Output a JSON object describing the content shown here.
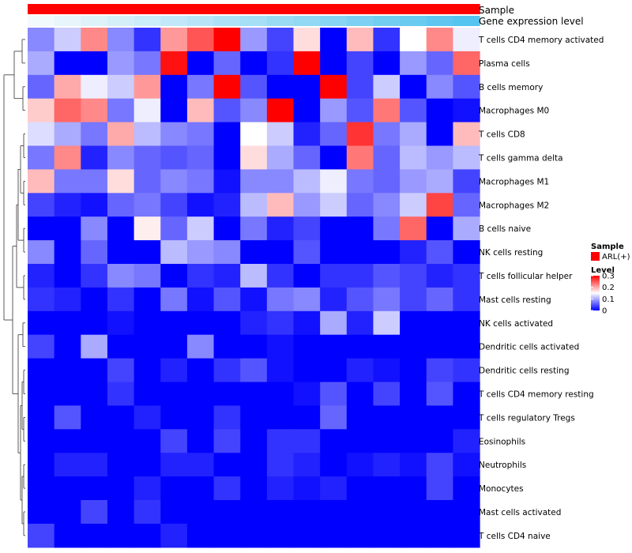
{
  "chart_data": {
    "type": "heatmap",
    "value_range": [
      0,
      0.3
    ],
    "color_stops": [
      "#0000ff",
      "#ffffff",
      "#ff0000"
    ],
    "rows": [
      {
        "label": "T cells CD4 memory activated",
        "values": [
          0.08,
          0.12,
          0.22,
          0.08,
          0.03,
          0.21,
          0.25,
          0.3,
          0.09,
          0.04,
          0.17,
          0.0,
          0.19,
          0.03,
          0.15,
          0.22,
          0.14
        ]
      },
      {
        "label": "Plasma cells",
        "values": [
          0.1,
          0.0,
          0.0,
          0.09,
          0.07,
          0.29,
          0.0,
          0.06,
          0.0,
          0.03,
          0.3,
          0.0,
          0.04,
          0.0,
          0.09,
          0.06,
          0.24
        ]
      },
      {
        "label": "B cells memory",
        "values": [
          0.06,
          0.2,
          0.14,
          0.12,
          0.21,
          0.0,
          0.07,
          0.3,
          0.05,
          0.0,
          0.0,
          0.3,
          0.04,
          0.12,
          0.0,
          0.08,
          0.05
        ]
      },
      {
        "label": "Macrophages M0",
        "values": [
          0.18,
          0.24,
          0.22,
          0.07,
          0.14,
          0.0,
          0.19,
          0.05,
          0.08,
          0.3,
          0.0,
          0.09,
          0.05,
          0.23,
          0.05,
          0.0,
          0.01
        ]
      },
      {
        "label": "T cells CD8",
        "values": [
          0.13,
          0.1,
          0.07,
          0.2,
          0.11,
          0.08,
          0.07,
          0.0,
          0.15,
          0.12,
          0.02,
          0.06,
          0.27,
          0.07,
          0.1,
          0.0,
          0.19
        ]
      },
      {
        "label": "T cells gamma delta",
        "values": [
          0.07,
          0.22,
          0.02,
          0.08,
          0.06,
          0.05,
          0.06,
          0.0,
          0.17,
          0.1,
          0.06,
          0.0,
          0.23,
          0.06,
          0.11,
          0.09,
          0.11
        ]
      },
      {
        "label": "Macrophages M1",
        "values": [
          0.19,
          0.07,
          0.07,
          0.17,
          0.06,
          0.08,
          0.07,
          0.01,
          0.08,
          0.08,
          0.11,
          0.14,
          0.07,
          0.06,
          0.09,
          0.1,
          0.04
        ]
      },
      {
        "label": "Macrophages M2",
        "values": [
          0.04,
          0.02,
          0.01,
          0.06,
          0.07,
          0.04,
          0.01,
          0.02,
          0.11,
          0.19,
          0.09,
          0.12,
          0.06,
          0.08,
          0.12,
          0.26,
          0.06
        ]
      },
      {
        "label": "B cells naive",
        "values": [
          0.0,
          0.0,
          0.08,
          0.0,
          0.16,
          0.06,
          0.12,
          0.0,
          0.07,
          0.02,
          0.04,
          0.0,
          0.0,
          0.07,
          0.24,
          0.0,
          0.1
        ]
      },
      {
        "label": "NK cells resting",
        "values": [
          0.08,
          0.0,
          0.06,
          0.0,
          0.0,
          0.11,
          0.09,
          0.08,
          0.0,
          0.0,
          0.05,
          0.0,
          0.0,
          0.0,
          0.02,
          0.05,
          0.0
        ]
      },
      {
        "label": "T cells follicular helper",
        "values": [
          0.02,
          0.0,
          0.03,
          0.08,
          0.07,
          0.0,
          0.03,
          0.02,
          0.11,
          0.03,
          0.0,
          0.03,
          0.03,
          0.05,
          0.04,
          0.02,
          0.03
        ]
      },
      {
        "label": "Mast cells resting",
        "values": [
          0.03,
          0.02,
          0.0,
          0.03,
          0.0,
          0.07,
          0.01,
          0.05,
          0.01,
          0.07,
          0.08,
          0.02,
          0.05,
          0.07,
          0.04,
          0.06,
          0.03
        ]
      },
      {
        "label": "NK cells activated",
        "values": [
          0.0,
          0.0,
          0.0,
          0.01,
          0.0,
          0.0,
          0.0,
          0.0,
          0.02,
          0.03,
          0.01,
          0.1,
          0.02,
          0.12,
          0.0,
          0.0,
          0.0
        ]
      },
      {
        "label": "Dendritic cells activated",
        "values": [
          0.04,
          0.0,
          0.1,
          0.0,
          0.0,
          0.0,
          0.08,
          0.0,
          0.0,
          0.01,
          0.0,
          0.0,
          0.0,
          0.0,
          0.0,
          0.0,
          0.0
        ]
      },
      {
        "label": "Dendritic cells resting",
        "values": [
          0.0,
          0.0,
          0.0,
          0.04,
          0.0,
          0.02,
          0.0,
          0.03,
          0.05,
          0.01,
          0.0,
          0.0,
          0.02,
          0.01,
          0.0,
          0.04,
          0.03
        ]
      },
      {
        "label": "T cells CD4 memory resting",
        "values": [
          0.0,
          0.0,
          0.0,
          0.03,
          0.0,
          0.0,
          0.0,
          0.0,
          0.0,
          0.0,
          0.01,
          0.05,
          0.0,
          0.04,
          0.0,
          0.05,
          0.0
        ]
      },
      {
        "label": "T cells regulatory  Tregs",
        "values": [
          0.0,
          0.05,
          0.0,
          0.0,
          0.02,
          0.0,
          0.0,
          0.03,
          0.0,
          0.0,
          0.0,
          0.06,
          0.0,
          0.0,
          0.0,
          0.0,
          0.0
        ]
      },
      {
        "label": "Eosinophils",
        "values": [
          0.0,
          0.0,
          0.0,
          0.0,
          0.0,
          0.04,
          0.0,
          0.04,
          0.0,
          0.03,
          0.03,
          0.0,
          0.0,
          0.0,
          0.0,
          0.0,
          0.02
        ]
      },
      {
        "label": "Neutrophils",
        "values": [
          0.0,
          0.02,
          0.02,
          0.0,
          0.0,
          0.02,
          0.02,
          0.0,
          0.0,
          0.03,
          0.02,
          0.0,
          0.01,
          0.02,
          0.01,
          0.04,
          0.01
        ]
      },
      {
        "label": "Monocytes",
        "values": [
          0.0,
          0.0,
          0.0,
          0.0,
          0.02,
          0.0,
          0.0,
          0.03,
          0.0,
          0.02,
          0.01,
          0.02,
          0.0,
          0.0,
          0.0,
          0.04,
          0.0
        ]
      },
      {
        "label": "Mast cells activated",
        "values": [
          0.0,
          0.0,
          0.04,
          0.0,
          0.03,
          0.0,
          0.0,
          0.0,
          0.0,
          0.0,
          0.0,
          0.0,
          0.0,
          0.0,
          0.0,
          0.0,
          0.0
        ]
      },
      {
        "label": "T cells CD4 naive",
        "values": [
          0.04,
          0.0,
          0.0,
          0.0,
          0.0,
          0.02,
          0.0,
          0.0,
          0.0,
          0.0,
          0.0,
          0.0,
          0.0,
          0.0,
          0.0,
          0.0,
          0.0
        ]
      }
    ],
    "column_annotations": [
      {
        "name": "Sample",
        "kind": "categorical",
        "values": [
          "ARL(+)"
        ],
        "colors": [
          "#ff0000"
        ]
      },
      {
        "name": "Gene expression level",
        "kind": "gradient",
        "colors": [
          "#f2f9fc",
          "#55c4ee"
        ]
      }
    ],
    "legend": [
      {
        "title": "Sample",
        "items": [
          {
            "label": "ARL(+)",
            "color": "#ff0000"
          }
        ]
      },
      {
        "title": "Level",
        "ticks": [
          0.3,
          0.2,
          0.1,
          0
        ]
      }
    ],
    "legend_tick_labels": [
      "0.3",
      "0.2",
      "0.1",
      "0"
    ]
  }
}
